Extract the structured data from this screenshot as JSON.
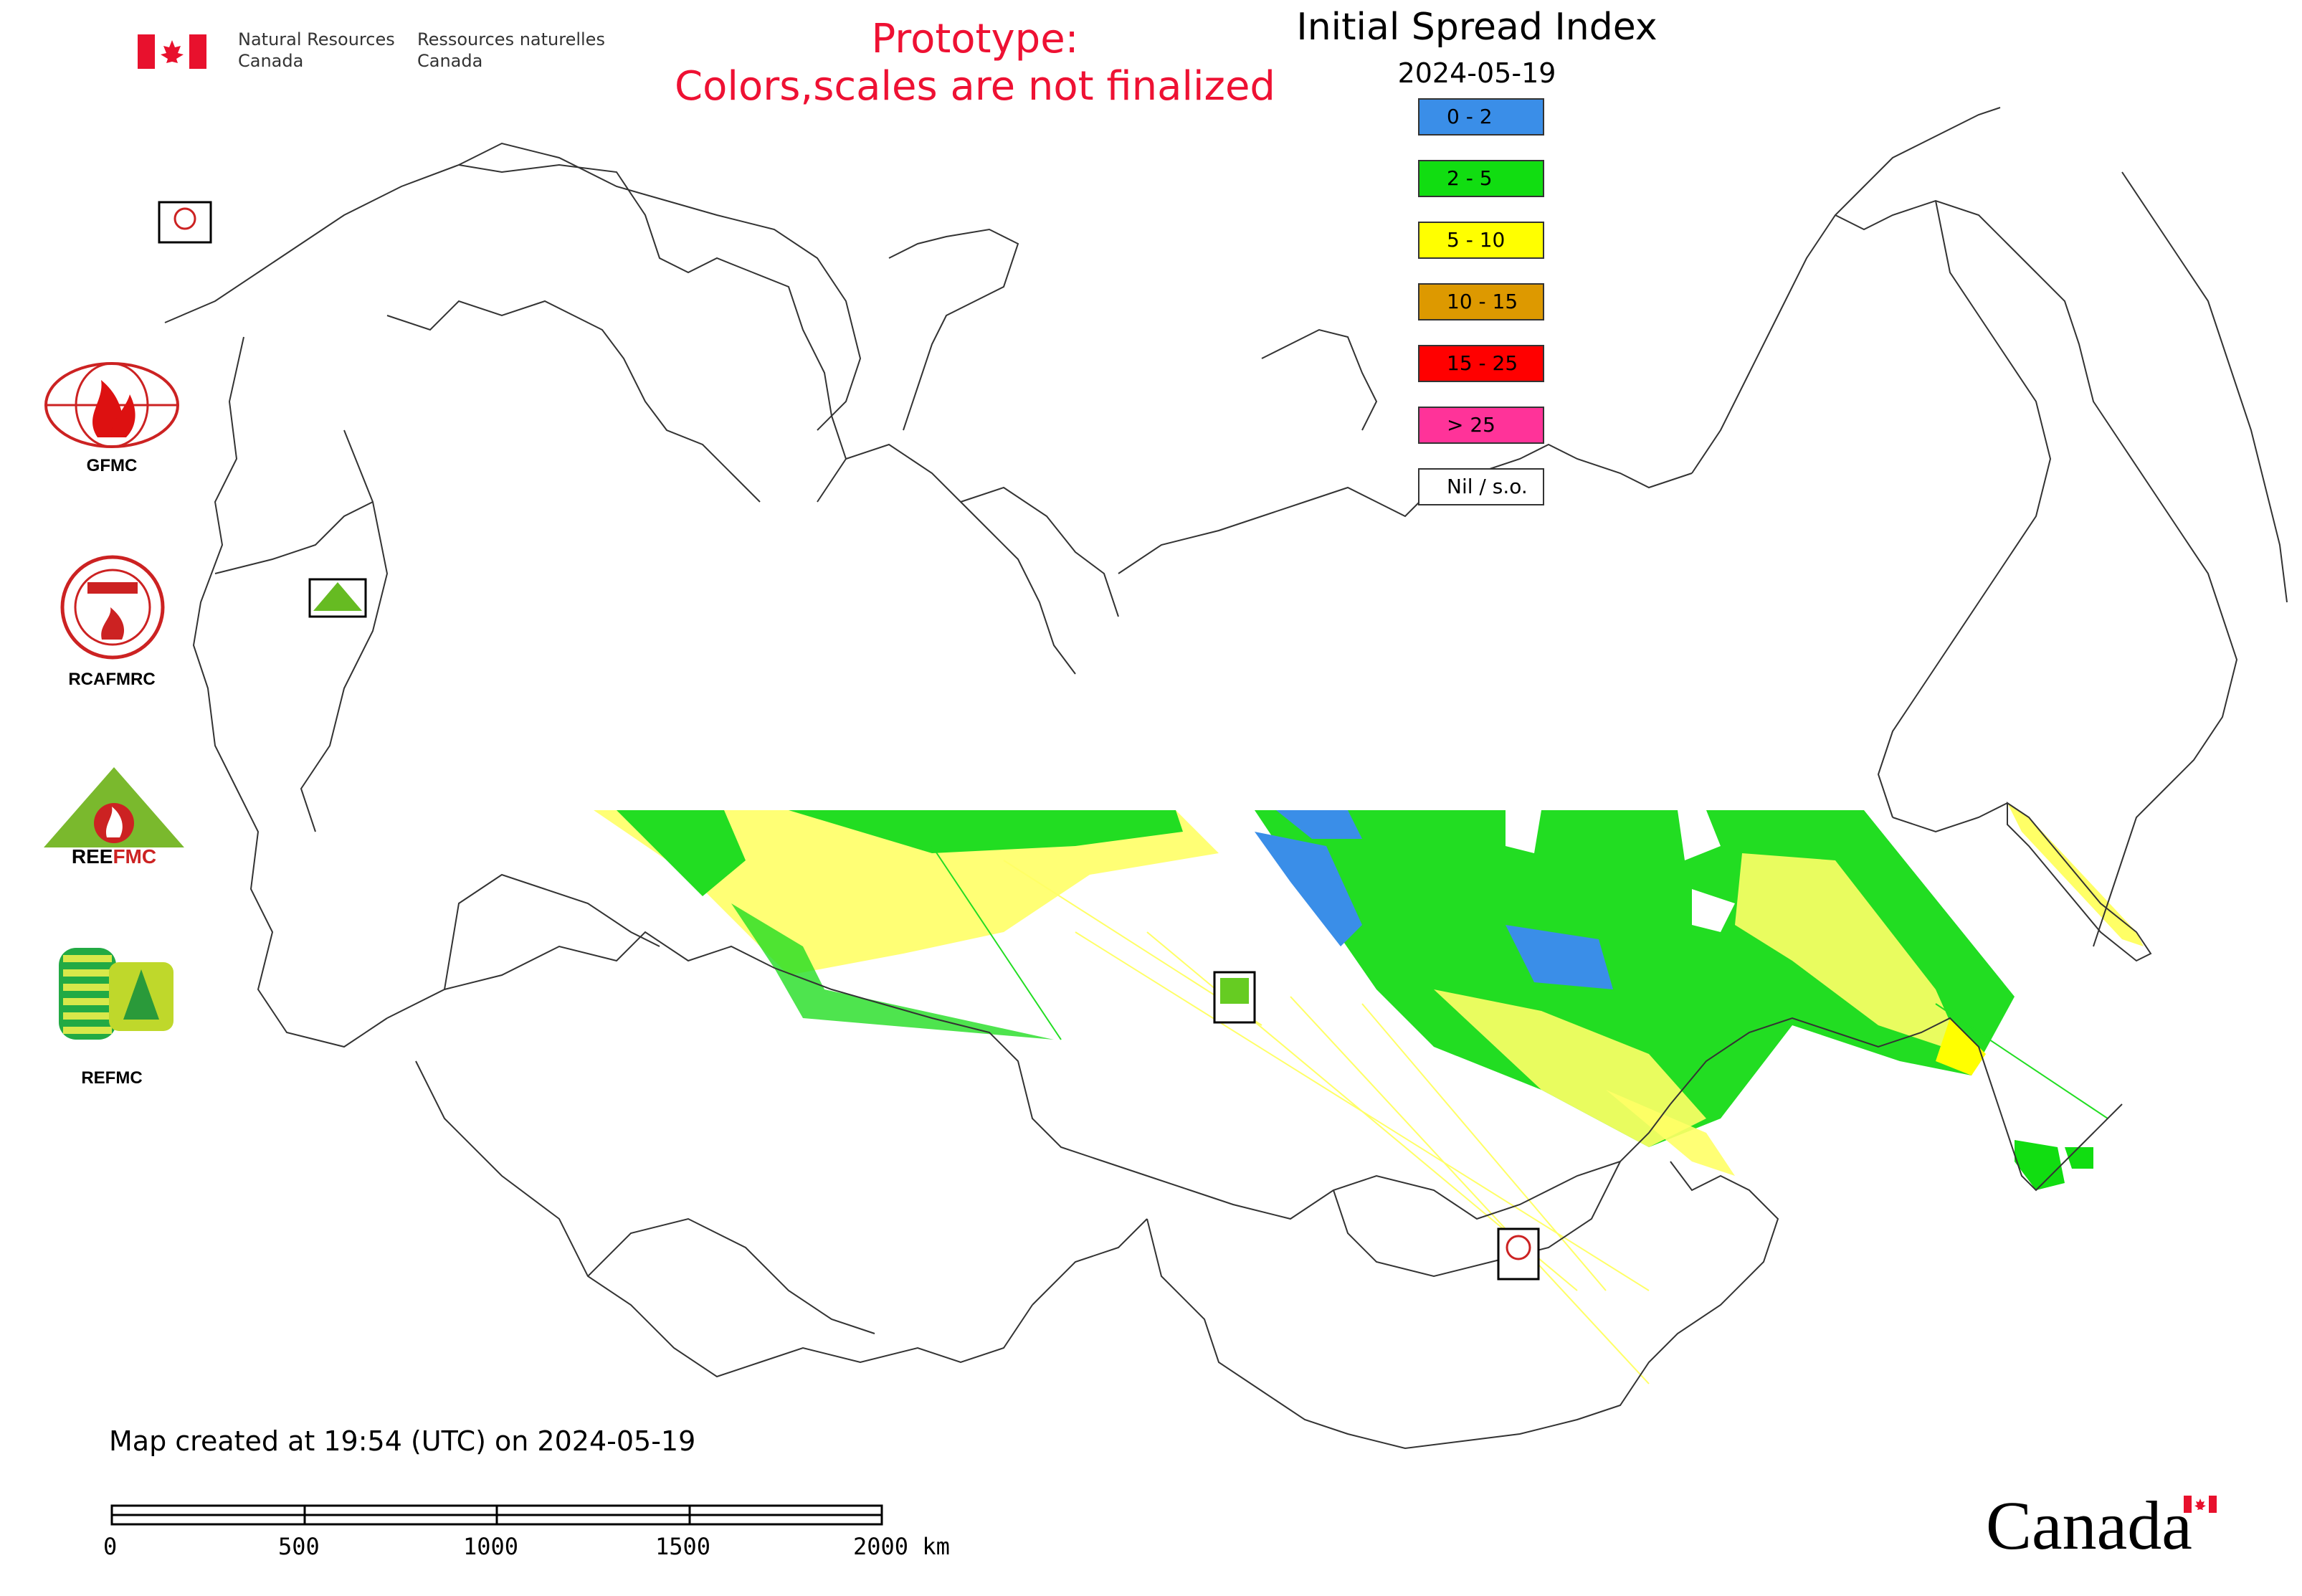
{
  "header": {
    "nrcan_en_line1": "Natural Resources",
    "nrcan_en_line2": "Canada",
    "nrcan_fr_line1": "Ressources naturelles",
    "nrcan_fr_line2": "Canada",
    "prototype_line1": "Prototype:",
    "prototype_line2": "Colors,scales are not finalized",
    "map_title": "Initial Spread Index",
    "map_date": "2024-05-19"
  },
  "legend": {
    "items": [
      {
        "label": "0 - 2",
        "color": "#3a8ee8"
      },
      {
        "label": "2 - 5",
        "color": "#11dd11"
      },
      {
        "label": "5 - 10",
        "color": "#ffff00"
      },
      {
        "label": "10 - 15",
        "color": "#dd9900"
      },
      {
        "label": "15 - 25",
        "color": "#ff0000"
      },
      {
        "label": "> 25",
        "color": "#ff3399"
      },
      {
        "label": "Nil / s.o.",
        "color": "#ffffff"
      }
    ]
  },
  "logos": {
    "gfmc": "GFMC",
    "rcafmrc": "RCAFMRC",
    "reefmc": "REEFMC",
    "refmc": "REFMC"
  },
  "footer": {
    "created_text": "Map created at 19:54 (UTC) on 2024-05-19",
    "scale_labels": [
      "0",
      "500",
      "1000",
      "1500",
      "2000 km"
    ],
    "wordmark": "Canada"
  },
  "colors": {
    "accent_red": "#ee1133",
    "border": "#333333"
  }
}
